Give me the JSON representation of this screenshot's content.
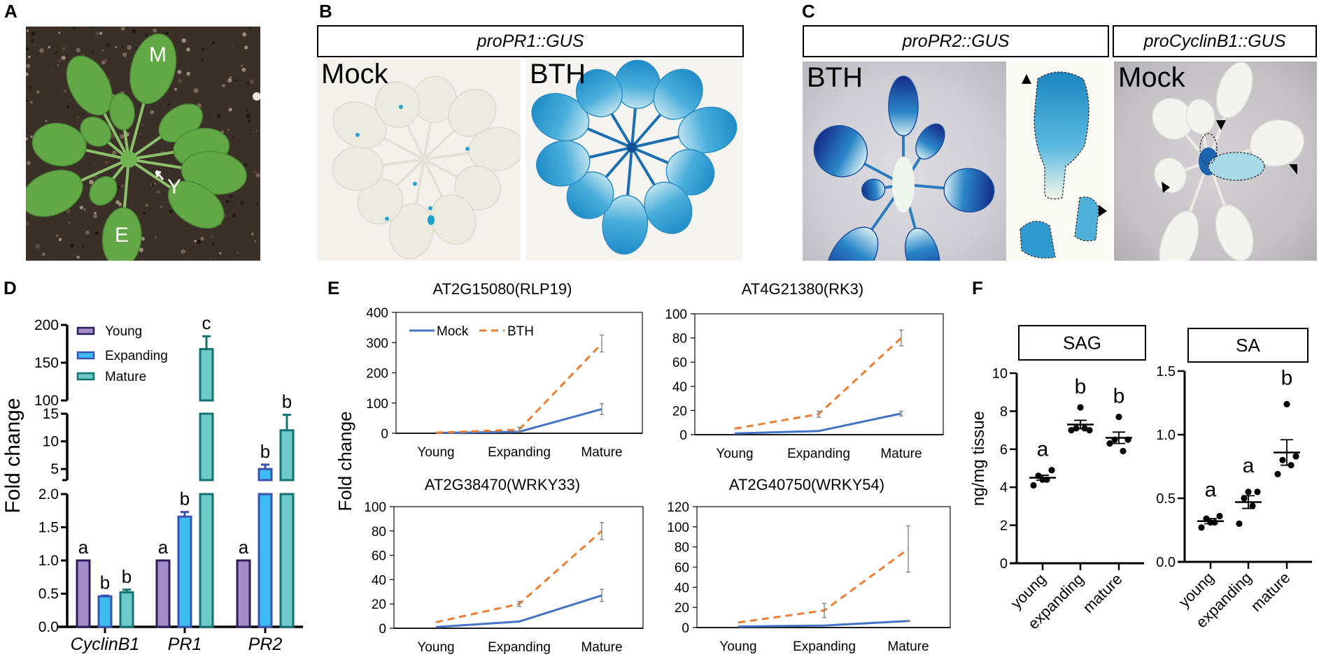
{
  "figure": {
    "panel_labels": {
      "a": "A",
      "b": "B",
      "c": "C",
      "d": "D",
      "e": "E",
      "f": "F"
    }
  },
  "panel_a": {
    "leaf_labels": {
      "mature": "M",
      "young": "Y",
      "expanding": "E"
    }
  },
  "panel_b": {
    "construct": "proPR1::GUS",
    "treatments": [
      "Mock",
      "BTH"
    ]
  },
  "panel_c": {
    "constructs": [
      "proPR2::GUS",
      "proCyclinB1::GUS"
    ],
    "treatments": [
      "BTH",
      "Mock"
    ]
  },
  "colors": {
    "young_fill": "#a58cc6",
    "young_edge": "#2d1d5c",
    "expanding_fill": "#3cbcf0",
    "expanding_edge": "#3a52b0",
    "mature_fill": "#6ec9c9",
    "mature_edge": "#137272",
    "mock_line": "#4472c4",
    "bth_line": "#ed7d31",
    "error_bar": "#7f7f7f"
  },
  "chart_data": [
    {
      "panel": "D",
      "type": "bar",
      "title": "",
      "xlabel": "",
      "ylabel": "Fold change",
      "categories": [
        "CyclinB1",
        "PR1",
        "PR2"
      ],
      "axis_segments": [
        [
          0,
          2
        ],
        [
          3,
          15
        ],
        [
          100,
          200
        ]
      ],
      "ytick_labels": [
        [
          "0.0",
          "0.5",
          "1.0",
          "1.5",
          "2.0"
        ],
        [
          "5",
          "10",
          "15"
        ],
        [
          "100",
          "150",
          "200"
        ]
      ],
      "legend": "top-left",
      "series": [
        {
          "name": "Young",
          "values": [
            1,
            1,
            1
          ],
          "errors": [
            0,
            0,
            0
          ],
          "letters": [
            "a",
            "a",
            "a"
          ]
        },
        {
          "name": "Expanding",
          "values": [
            0.46,
            1.66,
            5.0
          ],
          "errors": [
            0.01,
            0.07,
            0.8
          ],
          "letters": [
            "b",
            "b",
            "b"
          ]
        },
        {
          "name": "Mature",
          "values": [
            0.52,
            168,
            12
          ],
          "errors": [
            0.04,
            17,
            2.8
          ],
          "letters": [
            "b",
            "c",
            "b"
          ]
        }
      ]
    },
    {
      "panel": "E",
      "type": "line",
      "ylabel": "Fold change",
      "categories": [
        "Young",
        "Expanding",
        "Mature"
      ],
      "legend_entries": [
        "Mock",
        "BTH"
      ],
      "legend": "top-left of first subplot",
      "subplots": [
        {
          "title": "AT2G15080(RLP19)",
          "ylim": [
            0,
            400
          ],
          "ytick_labels": [
            "0",
            "100",
            "200",
            "300",
            "400"
          ],
          "series": [
            {
              "name": "Mock",
              "values": [
                1,
                5,
                80
              ],
              "errors": [
                0,
                1,
                18
              ]
            },
            {
              "name": "BTH",
              "values": [
                2,
                12,
                297
              ],
              "errors": [
                0,
                8,
                28
              ]
            }
          ]
        },
        {
          "title": "AT4G21380(RK3)",
          "ylim": [
            0,
            100
          ],
          "ytick_labels": [
            "0",
            "20",
            "40",
            "60",
            "80",
            "100"
          ],
          "series": [
            {
              "name": "Mock",
              "values": [
                1,
                3,
                17.5
              ],
              "errors": [
                0,
                0,
                2
              ]
            },
            {
              "name": "BTH",
              "values": [
                5,
                17,
                80
              ],
              "errors": [
                0,
                2.5,
                6.5
              ]
            }
          ]
        },
        {
          "title": "AT2G38470(WRKY33)",
          "ylim": [
            0,
            100
          ],
          "ytick_labels": [
            "0",
            "20",
            "40",
            "60",
            "80",
            "100"
          ],
          "series": [
            {
              "name": "Mock",
              "values": [
                1,
                5.5,
                27
              ],
              "errors": [
                0,
                0,
                5
              ]
            },
            {
              "name": "BTH",
              "values": [
                5,
                20,
                80
              ],
              "errors": [
                0,
                2,
                7
              ]
            }
          ]
        },
        {
          "title": "AT2G40750(WRKY54)",
          "ylim": [
            0,
            120
          ],
          "ytick_labels": [
            "0",
            "20",
            "40",
            "60",
            "80",
            "100",
            "120"
          ],
          "series": [
            {
              "name": "Mock",
              "values": [
                1,
                2,
                6.5
              ],
              "errors": [
                0,
                0,
                0.5
              ]
            },
            {
              "name": "BTH",
              "values": [
                5,
                17,
                78
              ],
              "errors": [
                0,
                7,
                23
              ]
            }
          ]
        }
      ]
    },
    {
      "panel": "F",
      "type": "scatter",
      "ylabel": "ng/mg tissue",
      "categories": [
        "young",
        "expanding",
        "mature"
      ],
      "subplots": [
        {
          "title": "SAG",
          "ylim": [
            0,
            10
          ],
          "ytick_labels": [
            "0",
            "2",
            "4",
            "6",
            "8",
            "10"
          ],
          "points": [
            [
              4.1,
              4.6,
              4.4,
              4.4,
              4.9
            ],
            [
              7.0,
              7.1,
              8.2,
              7.1,
              7.0
            ],
            [
              6.3,
              6.5,
              7.7,
              5.9,
              6.5
            ]
          ],
          "mean": [
            4.5,
            7.3,
            6.6
          ],
          "sem": [
            0.13,
            0.22,
            0.3
          ],
          "letters": [
            "a",
            "b",
            "b"
          ]
        },
        {
          "title": "SA",
          "ylim": [
            0,
            1.5
          ],
          "ytick_labels": [
            "0.0",
            "0.5",
            "1.0",
            "1.5"
          ],
          "points": [
            [
              0.27,
              0.34,
              0.31,
              0.31,
              0.36
            ],
            [
              0.3,
              0.5,
              0.55,
              0.44,
              0.55
            ],
            [
              0.69,
              0.8,
              1.24,
              0.76,
              0.83
            ]
          ],
          "mean": [
            0.32,
            0.47,
            0.86
          ],
          "sem": [
            0.02,
            0.05,
            0.1
          ],
          "letters": [
            "a",
            "a",
            "b"
          ]
        }
      ]
    }
  ]
}
